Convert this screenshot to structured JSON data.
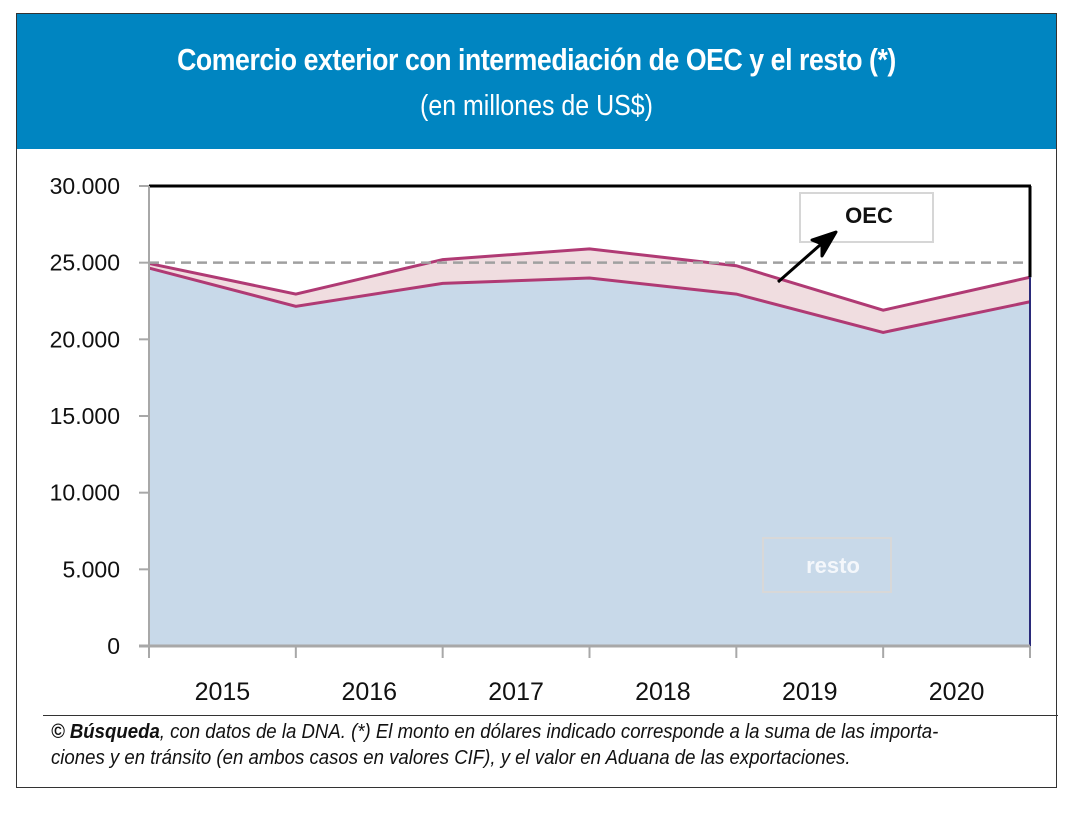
{
  "header": {
    "title": "Comercio exterior con intermediación de OEC y el resto (*)",
    "subtitle": "(en millones de US$)"
  },
  "footer": {
    "source_bold": "© Búsqueda",
    "text": ", con datos de la DNA. (*) El monto en dólares indicado corresponde a la suma de las importa-ciones y en tránsito (en ambos casos en valores CIF), y el valor en Aduana de las exportaciones."
  },
  "colors": {
    "header_bg": "#0085c1",
    "resto_fill": "#c8d9e9",
    "oec_fill": "#f0dde0",
    "line": "#b03a74",
    "reference_line": "#a0a0a0"
  },
  "chart_data": {
    "type": "area",
    "stacked": true,
    "title": "Comercio exterior con intermediación de OEC y el resto (*)",
    "subtitle": "(en millones de US$)",
    "xlabel": "",
    "ylabel": "",
    "x": [
      2015.0,
      2016.0,
      2017.0,
      2018.0,
      2019.0,
      2020.0,
      2020.6
    ],
    "x_tick_labels": [
      "2015",
      "2016",
      "2017",
      "2018",
      "2019",
      "2020"
    ],
    "y_tick_labels": [
      "0",
      "5.000",
      "10.000",
      "15.000",
      "20.000",
      "25.000",
      "30.000"
    ],
    "y_ticks": [
      0,
      5000,
      10000,
      15000,
      20000,
      25000,
      30000
    ],
    "ylim": [
      0,
      30000
    ],
    "grid": false,
    "reference_line": {
      "value": 25000,
      "style": "dashed"
    },
    "series": [
      {
        "name": "resto",
        "values": [
          24650,
          22150,
          23650,
          24000,
          22950,
          20450,
          22450
        ]
      },
      {
        "name": "OEC",
        "values": [
          300,
          800,
          1550,
          1900,
          1850,
          1450,
          1600
        ]
      }
    ],
    "totals": [
      24950,
      22950,
      25200,
      25900,
      24800,
      21900,
      24050
    ],
    "annotations": [
      {
        "text": "OEC",
        "points_to": "OEC band",
        "position": "top-right"
      },
      {
        "text": "resto",
        "position": "bottom-right"
      }
    ]
  }
}
